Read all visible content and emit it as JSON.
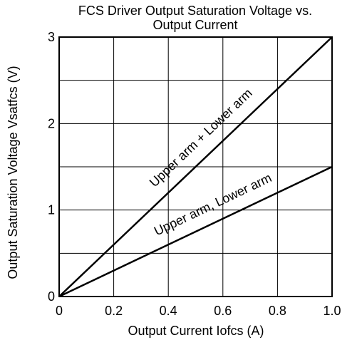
{
  "chart_data": {
    "type": "line",
    "title_line1": "FCS Driver Output Saturation Voltage vs.",
    "title_line2": "Output Current",
    "xlabel": "Output Current  Iofcs  (A)",
    "ylabel": "Output Saturation Voltage  Vsatfcs  (V)",
    "xlim": [
      0,
      1.0
    ],
    "ylim": [
      0,
      3
    ],
    "x_ticks": [
      0,
      0.2,
      0.4,
      0.6,
      0.8,
      1.0
    ],
    "x_tick_labels": [
      "0",
      "0.2",
      "0.4",
      "0.6",
      "0.8",
      "1.0"
    ],
    "y_ticks": [
      0,
      1,
      2,
      3
    ],
    "y_tick_labels": [
      "0",
      "1",
      "2",
      "3"
    ],
    "x_grid": [
      0,
      0.2,
      0.4,
      0.6,
      0.8,
      1.0
    ],
    "y_grid": [
      0,
      0.5,
      1,
      1.5,
      2,
      2.5,
      3
    ],
    "grid": true,
    "series": [
      {
        "annotation": "Upper arm + Lower arm",
        "x": [
          0,
          1.0
        ],
        "y": [
          0,
          3.0
        ],
        "label_at": [
          0.53,
          1.8
        ]
      },
      {
        "annotation": "Upper arm, Lower arm",
        "x": [
          0,
          1.0
        ],
        "y": [
          0,
          1.5
        ],
        "label_at": [
          0.57,
          1.02
        ]
      }
    ]
  }
}
